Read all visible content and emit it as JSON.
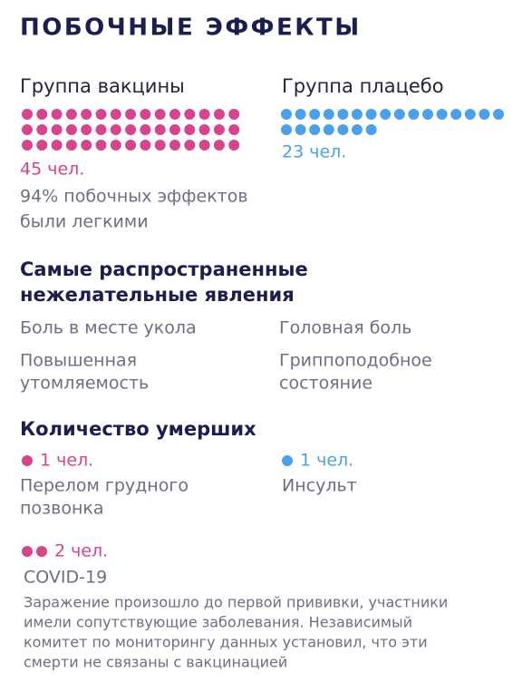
{
  "title": "ПОБОЧНЫЕ ЭФФЕКТЫ",
  "groups": [
    {
      "name": "Группа вакцины",
      "count": 45,
      "count_label": "45 чел.",
      "color": "#d6458c",
      "note_lines": [
        "94% побочных эффектов",
        "были легкими"
      ]
    },
    {
      "name": "Группа плацебо",
      "count": 23,
      "count_label": "23 чел.",
      "color": "#4aa0ea"
    }
  ],
  "common_effects": {
    "heading_lines": [
      "Самые распространенные",
      "нежелательные явления"
    ],
    "items": [
      {
        "lines": [
          "Боль в месте укола"
        ]
      },
      {
        "lines": [
          "Головная боль"
        ]
      },
      {
        "lines": [
          "Повышенная",
          "утомляемость"
        ]
      },
      {
        "lines": [
          "Гриппоподобное",
          "состояние"
        ]
      }
    ]
  },
  "deaths": {
    "heading": "Количество умерших",
    "cases": [
      {
        "count": 1,
        "count_label": "1 чел.",
        "color": "#d6458c",
        "lines": [
          "Перелом грудного",
          "позвонка"
        ]
      },
      {
        "count": 1,
        "count_label": "1 чел.",
        "color": "#4aa0ea",
        "lines": [
          "Инсульт"
        ]
      },
      {
        "count": 2,
        "count_label": "2 чел.",
        "color": "#d6458c",
        "lines": [
          "COVID-19"
        ]
      }
    ],
    "note_lines": [
      "Заражение произошло до первой прививки, участники",
      "имели сопутствующие заболевания. Независимый",
      "комитет по мониторингу данных установил, что эти",
      "смерти не связаны с вакцинацией"
    ]
  }
}
